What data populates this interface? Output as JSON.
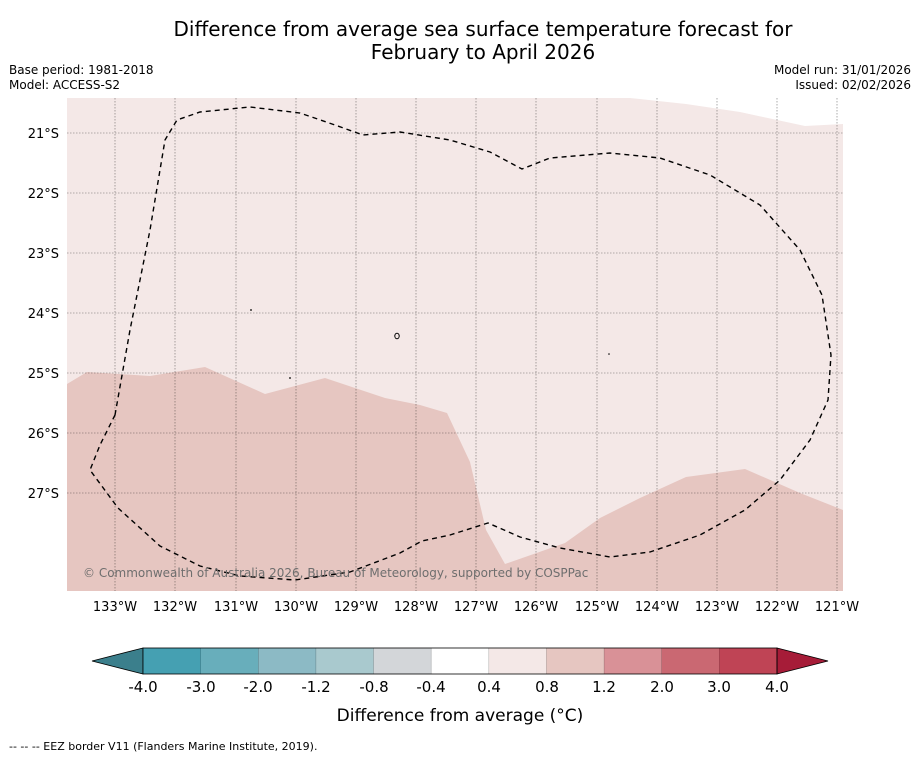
{
  "title": {
    "line1": "Difference from average sea surface temperature forecast for",
    "line2": "February to April 2026"
  },
  "meta": {
    "base_period": "Base period: 1981-2018",
    "model": "Model: ACCESS-S2",
    "model_run": "Model run: 31/01/2026",
    "issued": "Issued: 02/02/2026"
  },
  "map": {
    "lon_labels": [
      "133°W",
      "132°W",
      "131°W",
      "130°W",
      "129°W",
      "128°W",
      "127°W",
      "126°W",
      "125°W",
      "124°W",
      "123°W",
      "122°W",
      "121°W"
    ],
    "lat_labels": [
      "21°S",
      "22°S",
      "23°S",
      "24°S",
      "25°S",
      "26°S",
      "27°S"
    ],
    "copyright": "© Commonwealth of Australia 2026, Bureau of Meteorology, supported by COSPPac",
    "colors": {
      "anomaly_0_4_to_0_8": "#f4e8e7",
      "anomaly_0_8_to_1_2": "#e6c6c1",
      "eez_border": "#000000"
    }
  },
  "colorbar": {
    "title": "Difference from average (°C)",
    "tick_labels": [
      "-4.0",
      "-3.0",
      "-2.0",
      "-1.2",
      "-0.8",
      "-0.4",
      "0.4",
      "0.8",
      "1.2",
      "2.0",
      "3.0",
      "4.0"
    ],
    "extend_low_color": "#3b7f8c",
    "extend_high_color": "#a61c38",
    "segment_colors": [
      "#45a0b2",
      "#68aebb",
      "#8cbac5",
      "#a9c9ce",
      "#d3d6d9",
      "#ffffff",
      "#f4e8e7",
      "#e6c6c1",
      "#d99197",
      "#ca6872",
      "#bf4455"
    ]
  },
  "footnote": "--  --  -- EEZ border V11 (Flanders Marine Institute, 2019)."
}
